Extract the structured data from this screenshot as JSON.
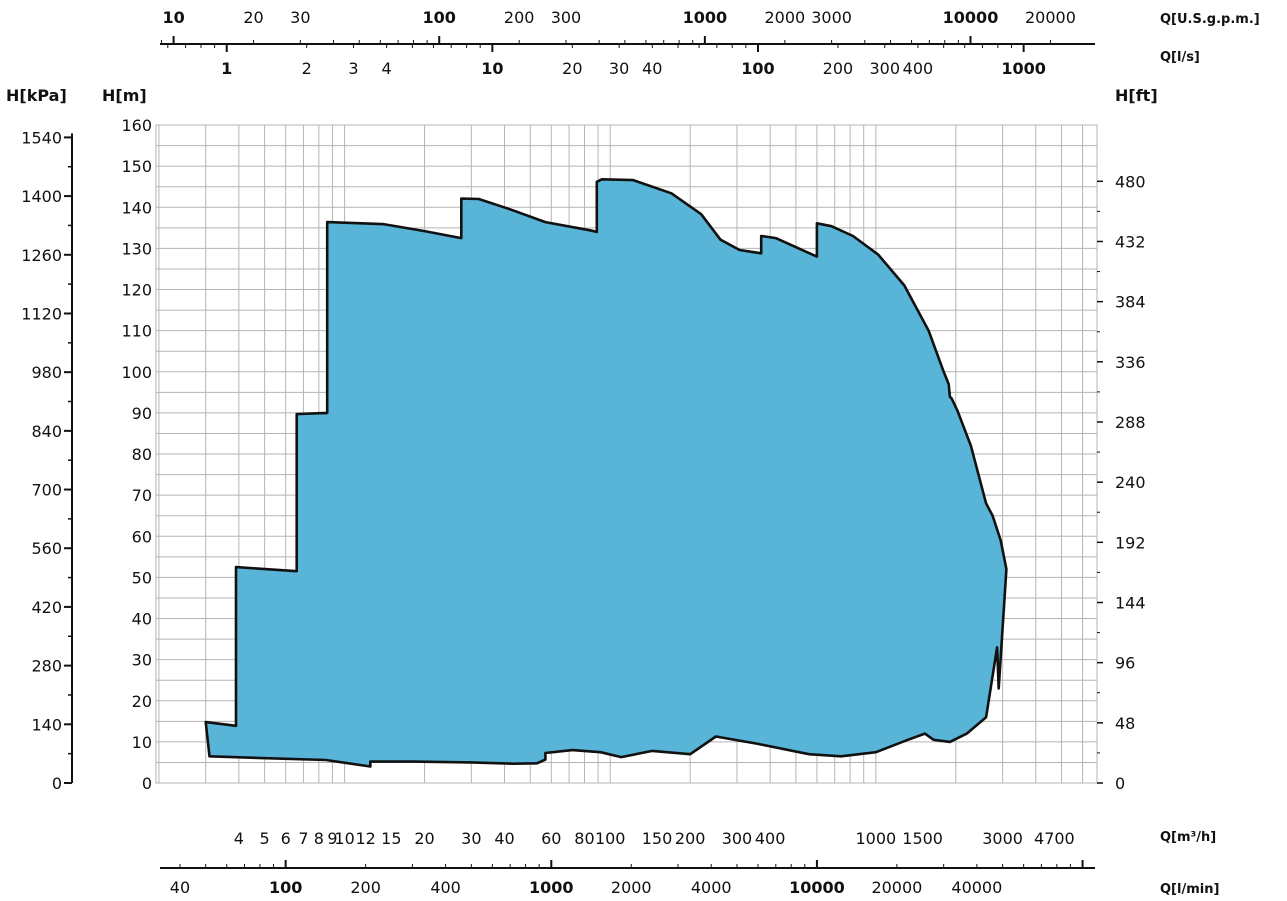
{
  "chart_data": {
    "type": "area",
    "title": "",
    "fill_color": "#58b5d8",
    "outline_color": "#111111",
    "grid": true,
    "primary_x_axis": {
      "unit": "Q[m³/h]",
      "scale": "log",
      "range": [
        1.95,
        6800
      ],
      "ticks": [
        {
          "v": 4,
          "label": "4"
        },
        {
          "v": 5,
          "label": "5"
        },
        {
          "v": 6,
          "label": "6"
        },
        {
          "v": 7,
          "label": "7"
        },
        {
          "v": 8,
          "label": "8"
        },
        {
          "v": 9,
          "label": "9"
        },
        {
          "v": 10,
          "label": "10"
        },
        {
          "v": 12,
          "label": "12"
        },
        {
          "v": 15,
          "label": "15"
        },
        {
          "v": 20,
          "label": "20"
        },
        {
          "v": 30,
          "label": "30"
        },
        {
          "v": 40,
          "label": "40"
        },
        {
          "v": 60,
          "label": "60"
        },
        {
          "v": 80,
          "label": "80"
        },
        {
          "v": 100,
          "label": "100"
        },
        {
          "v": 150,
          "label": "150"
        },
        {
          "v": 200,
          "label": "200"
        },
        {
          "v": 300,
          "label": "300"
        },
        {
          "v": 400,
          "label": "400"
        },
        {
          "v": 1000,
          "label": "1000"
        },
        {
          "v": 1500,
          "label": "1500"
        },
        {
          "v": 3000,
          "label": "3000"
        },
        {
          "v": 4700,
          "label": "4700"
        }
      ]
    },
    "lmin_axis": {
      "unit": "Q[l/min]",
      "factor": 16.6667,
      "ticks": [
        {
          "v": 40,
          "label": "40",
          "bold": false
        },
        {
          "v": 100,
          "label": "100",
          "bold": true
        },
        {
          "v": 200,
          "label": "200",
          "bold": false
        },
        {
          "v": 400,
          "label": "400",
          "bold": false
        },
        {
          "v": 1000,
          "label": "1000",
          "bold": true
        },
        {
          "v": 2000,
          "label": "2000",
          "bold": false
        },
        {
          "v": 4000,
          "label": "4000",
          "bold": false
        },
        {
          "v": 10000,
          "label": "10000",
          "bold": true
        },
        {
          "v": 20000,
          "label": "20000",
          "bold": false
        },
        {
          "v": 40000,
          "label": "40000",
          "bold": false
        }
      ]
    },
    "usgpm_axis": {
      "unit": "Q[U.S.g.p.m.]",
      "factor": 4.4029,
      "ticks": [
        {
          "v": 10,
          "label": "10",
          "bold": true
        },
        {
          "v": 20,
          "label": "20",
          "bold": false
        },
        {
          "v": 30,
          "label": "30",
          "bold": false
        },
        {
          "v": 100,
          "label": "100",
          "bold": true
        },
        {
          "v": 200,
          "label": "200",
          "bold": false
        },
        {
          "v": 300,
          "label": "300",
          "bold": false
        },
        {
          "v": 1000,
          "label": "1000",
          "bold": true
        },
        {
          "v": 2000,
          "label": "2000",
          "bold": false
        },
        {
          "v": 3000,
          "label": "3000",
          "bold": false
        },
        {
          "v": 10000,
          "label": "10000",
          "bold": true
        },
        {
          "v": 20000,
          "label": "20000",
          "bold": false
        }
      ]
    },
    "ls_axis": {
      "unit": "Q[l/s]",
      "factor": 0.27778,
      "ticks": [
        {
          "v": 1,
          "label": "1",
          "bold": true
        },
        {
          "v": 2,
          "label": "2",
          "bold": false
        },
        {
          "v": 3,
          "label": "3",
          "bold": false
        },
        {
          "v": 4,
          "label": "4",
          "bold": false
        },
        {
          "v": 10,
          "label": "10",
          "bold": true
        },
        {
          "v": 20,
          "label": "20",
          "bold": false
        },
        {
          "v": 30,
          "label": "30",
          "bold": false
        },
        {
          "v": 40,
          "label": "40",
          "bold": false
        },
        {
          "v": 100,
          "label": "100",
          "bold": true
        },
        {
          "v": 200,
          "label": "200",
          "bold": false
        },
        {
          "v": 300,
          "label": "300",
          "bold": false
        },
        {
          "v": 400,
          "label": "400",
          "bold": false
        },
        {
          "v": 1000,
          "label": "1000",
          "bold": true
        }
      ]
    },
    "y_axis_m": {
      "label": "H[m]",
      "range": [
        0,
        160
      ],
      "ticks": [
        0,
        10,
        20,
        30,
        40,
        50,
        60,
        70,
        80,
        90,
        100,
        110,
        120,
        130,
        140,
        150,
        160
      ]
    },
    "y_axis_kpa": {
      "label": "H[kPa]",
      "factor": 9.81,
      "ticks": [
        0,
        140,
        280,
        420,
        560,
        700,
        840,
        980,
        1120,
        1260,
        1400,
        1540
      ]
    },
    "y_axis_ft": {
      "label": "H[ft]",
      "factor": 3.2808,
      "ticks": [
        0,
        48,
        96,
        144,
        192,
        240,
        288,
        336,
        384,
        432,
        480
      ]
    },
    "envelope": [
      [
        3.0,
        14.8
      ],
      [
        3.9,
        13.9
      ],
      [
        3.9,
        52.5
      ],
      [
        6.6,
        51.5
      ],
      [
        6.6,
        89.7
      ],
      [
        8.6,
        90.0
      ],
      [
        8.6,
        136.4
      ],
      [
        14.0,
        135.9
      ],
      [
        20.0,
        134.2
      ],
      [
        27.5,
        132.5
      ],
      [
        27.5,
        142.1
      ],
      [
        32.0,
        142.0
      ],
      [
        42.0,
        139.5
      ],
      [
        57.0,
        136.4
      ],
      [
        84.0,
        134.4
      ],
      [
        89.0,
        134.0
      ],
      [
        89.0,
        146.2
      ],
      [
        93.0,
        146.8
      ],
      [
        122.0,
        146.6
      ],
      [
        170.0,
        143.4
      ],
      [
        220.0,
        138.3
      ],
      [
        260.0,
        132.1
      ],
      [
        307.0,
        129.6
      ],
      [
        370.0,
        128.8
      ],
      [
        370.0,
        133.0
      ],
      [
        420.0,
        132.5
      ],
      [
        520.0,
        129.8
      ],
      [
        600.0,
        128.0
      ],
      [
        600.0,
        136.1
      ],
      [
        680.0,
        135.4
      ],
      [
        820.0,
        133.0
      ],
      [
        1020.0,
        128.5
      ],
      [
        1280.0,
        121.0
      ],
      [
        1580.0,
        110.0
      ],
      [
        1800.0,
        100.0
      ],
      [
        1880.0,
        97.0
      ],
      [
        1900.0,
        93.9
      ],
      [
        1930.0,
        93.5
      ],
      [
        2030.0,
        90.5
      ],
      [
        2280.0,
        82.0
      ],
      [
        2600.0,
        68.0
      ],
      [
        2750.0,
        65.0
      ],
      [
        2950.0,
        59.0
      ],
      [
        3100.0,
        52.0
      ],
      [
        2900.0,
        23.0
      ],
      [
        2860.0,
        33.0
      ],
      [
        2600.0,
        16.0
      ],
      [
        2200.0,
        12.0
      ],
      [
        1900.0,
        10.0
      ],
      [
        1650.0,
        10.5
      ],
      [
        1530.0,
        12.0
      ],
      [
        1320.0,
        10.5
      ],
      [
        1000.0,
        7.5
      ],
      [
        740.0,
        6.5
      ],
      [
        560.0,
        7.0
      ],
      [
        360.0,
        9.5
      ],
      [
        250.0,
        11.3
      ],
      [
        200.0,
        7.0
      ],
      [
        144.0,
        7.8
      ],
      [
        110.0,
        6.3
      ],
      [
        92.0,
        7.5
      ],
      [
        72.0,
        8.0
      ],
      [
        57.0,
        7.3
      ],
      [
        57.0,
        5.7
      ],
      [
        53.0,
        4.8
      ],
      [
        43.0,
        4.7
      ],
      [
        30.0,
        5.0
      ],
      [
        18.0,
        5.2
      ],
      [
        12.5,
        5.2
      ],
      [
        12.5,
        4.0
      ],
      [
        8.5,
        5.6
      ],
      [
        4.7,
        6.1
      ],
      [
        3.1,
        6.5
      ]
    ]
  }
}
